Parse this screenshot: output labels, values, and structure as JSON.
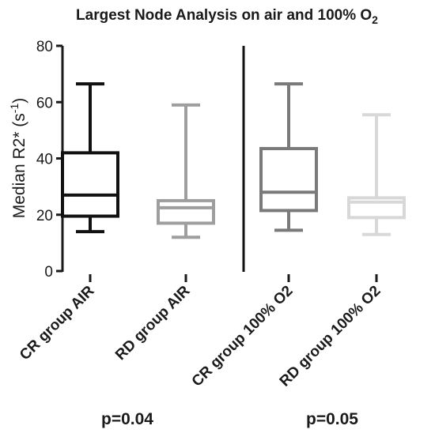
{
  "chart_data": {
    "type": "box",
    "title": "Largest Node Analysis on air and 100% O",
    "title_subscript": "2",
    "ylabel_main": "Median R2* (s",
    "ylabel_superscript": "-1",
    "ylabel_close": ")",
    "ylim": [
      0,
      80
    ],
    "yticks": [
      "0",
      "20",
      "40",
      "60",
      "80"
    ],
    "yticks_values": [
      0,
      20,
      40,
      60,
      80
    ],
    "categories": [
      "CR group AIR",
      "RD group AIR",
      "CR group 100% O2",
      "RD group 100% O2"
    ],
    "boxes": [
      {
        "category": "CR group AIR",
        "min": 14,
        "q1": 19.5,
        "median": 27,
        "q3": 42,
        "max": 66.5,
        "color": "#111111"
      },
      {
        "category": "RD group AIR",
        "min": 12,
        "q1": 17,
        "median": 22.5,
        "q3": 25,
        "max": 59,
        "color": "#9e9e9e"
      },
      {
        "category": "CR group 100% O2",
        "min": 14.5,
        "q1": 21.5,
        "median": 28,
        "q3": 43.5,
        "max": 66.5,
        "color": "#7a7a7a"
      },
      {
        "category": "RD group 100% O2",
        "min": 13,
        "q1": 19,
        "median": 24.5,
        "q3": 26,
        "max": 55.5,
        "color": "#d8d8d8"
      }
    ],
    "group_divider": true,
    "p_values": [
      "p=0.04",
      "p=0.05"
    ],
    "grid": false,
    "legend": "none"
  }
}
